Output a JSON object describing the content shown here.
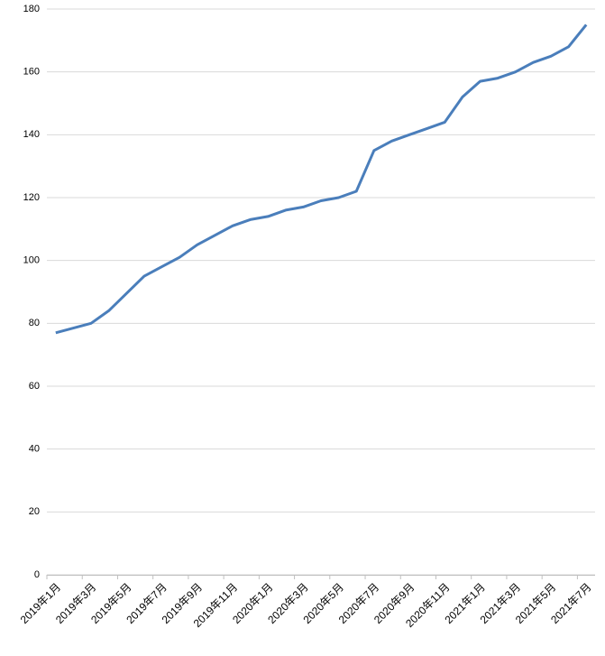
{
  "chart_data": {
    "type": "line",
    "categories": [
      "2019年1月",
      null,
      "2019年3月",
      null,
      "2019年5月",
      null,
      "2019年7月",
      null,
      "2019年9月",
      null,
      "2019年11月",
      null,
      "2020年1月",
      null,
      "2020年3月",
      null,
      "2020年5月",
      null,
      "2020年7月",
      null,
      "2020年9月",
      null,
      "2020年11月",
      null,
      "2021年1月",
      null,
      "2021年3月",
      null,
      "2021年5月",
      null,
      "2021年7月"
    ],
    "series": [
      {
        "color": "#4a7ebb",
        "values": [
          77,
          78.5,
          80,
          84,
          89.5,
          95,
          98,
          101,
          105,
          108,
          111,
          113,
          114,
          116,
          117,
          119,
          120,
          122,
          135,
          138,
          140,
          142,
          144,
          152,
          157,
          158,
          160,
          163,
          165,
          168,
          175
        ]
      }
    ],
    "ylim": [
      0,
      180
    ],
    "yticks": [
      0,
      20,
      40,
      60,
      80,
      100,
      120,
      140,
      160,
      180
    ],
    "grid": true
  }
}
